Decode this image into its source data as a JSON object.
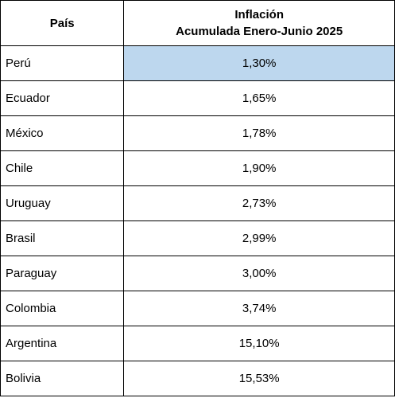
{
  "table": {
    "header": {
      "country": "País",
      "value_line1": "Inflación",
      "value_line2": "Acumulada Enero-Junio 2025"
    },
    "highlight_color": "#bdd7ee",
    "rows": [
      {
        "country": "Perú",
        "value": "1,30%",
        "highlighted": true
      },
      {
        "country": "Ecuador",
        "value": "1,65%"
      },
      {
        "country": "México",
        "value": "1,78%"
      },
      {
        "country": "Chile",
        "value": "1,90%"
      },
      {
        "country": "Uruguay",
        "value": "2,73%"
      },
      {
        "country": "Brasil",
        "value": "2,99%"
      },
      {
        "country": "Paraguay",
        "value": "3,00%"
      },
      {
        "country": "Colombia",
        "value": "3,74%"
      },
      {
        "country": "Argentina",
        "value": "15,10%"
      },
      {
        "country": "Bolivia",
        "value": "15,53%"
      }
    ]
  }
}
